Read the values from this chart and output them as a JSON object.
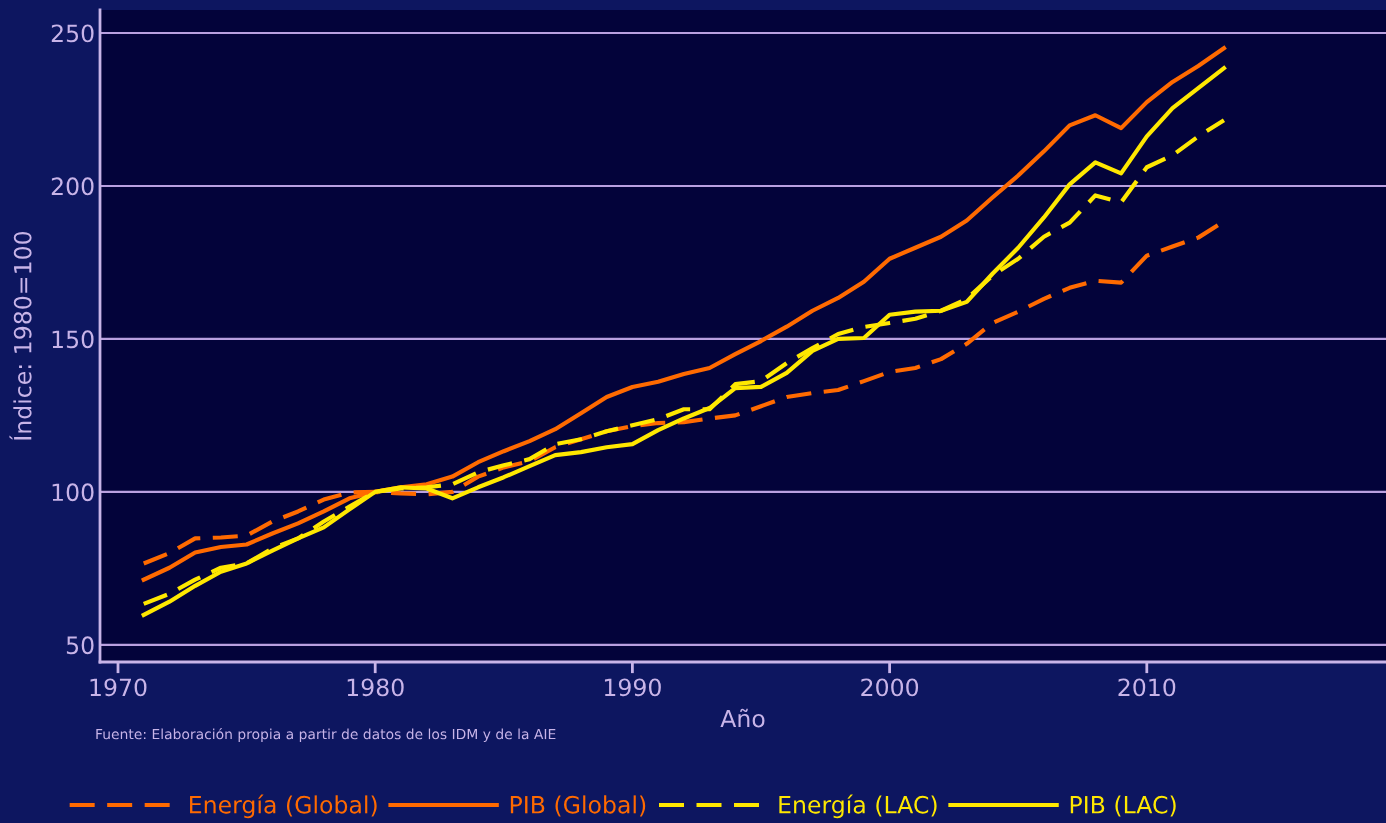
{
  "chart_data": {
    "type": "line",
    "xlabel": "Año",
    "ylabel": "Índice: 1980=100",
    "annotations": [
      "Fuente: Elaboración propia a partir de datos de los IDM y de la AIE"
    ],
    "x": [
      1971,
      1972,
      1973,
      1974,
      1975,
      1976,
      1977,
      1978,
      1979,
      1980,
      1981,
      1982,
      1983,
      1984,
      1985,
      1986,
      1987,
      1988,
      1989,
      1990,
      1991,
      1992,
      1993,
      1994,
      1995,
      1996,
      1997,
      1998,
      1999,
      2000,
      2001,
      2002,
      2003,
      2004,
      2005,
      2006,
      2007,
      2008,
      2009,
      2010,
      2011,
      2012,
      2013
    ],
    "series": [
      {
        "name": "Energía (Global)",
        "color": "#ff6a00",
        "line_style": "dashed",
        "values": [
          76.6,
          80,
          84.8,
          85.1,
          85.7,
          90.3,
          93.6,
          97.5,
          99.8,
          100,
          99.5,
          99.2,
          100,
          105,
          108,
          110,
          114.6,
          117.2,
          119.8,
          121.5,
          122.5,
          122.8,
          124,
          125,
          128,
          131,
          132.3,
          133.3,
          136.2,
          139.2,
          140.5,
          143.4,
          148.4,
          155.2,
          158.9,
          163.1,
          166.7,
          169,
          168.4,
          177.2,
          180.2,
          183.1,
          188.4
        ]
      },
      {
        "name": "PIB (Global)",
        "color": "#ff6a00",
        "line_style": "solid",
        "values": [
          71.3,
          75.2,
          80.2,
          82,
          82.8,
          86.4,
          89.7,
          93.6,
          97.9,
          100,
          101.5,
          102.5,
          105,
          109.7,
          113.3,
          116.6,
          120.5,
          125.7,
          131,
          134.3,
          136,
          138.5,
          140.5,
          145,
          149.3,
          154,
          159.2,
          163.4,
          168.7,
          176.2,
          179.8,
          183.4,
          188.7,
          196.2,
          203.4,
          211.3,
          219.8,
          223.1,
          218.9,
          227.4,
          234,
          239.2,
          245
        ]
      },
      {
        "name": "Energía (LAC)",
        "color": "#ffe800",
        "line_style": "dashed",
        "values": [
          63.4,
          66.7,
          71.3,
          75.2,
          76.6,
          81.5,
          84.8,
          90.3,
          95.2,
          100,
          101.1,
          101.5,
          102.5,
          106.4,
          108.7,
          110.7,
          115.6,
          117.2,
          119.8,
          121.8,
          123.8,
          127,
          127,
          135.2,
          136.2,
          142.1,
          147,
          151.6,
          153.9,
          155.2,
          156.6,
          159.2,
          163.1,
          170.7,
          176.2,
          183.4,
          188,
          196.9,
          194.6,
          206.1,
          210,
          216.2,
          221.5
        ]
      },
      {
        "name": "PIB (LAC)",
        "color": "#ffe800",
        "line_style": "solid",
        "values": [
          59.8,
          64.1,
          69.3,
          73.9,
          76.6,
          80.8,
          84.8,
          88.4,
          94.3,
          100,
          101.5,
          101.1,
          97.9,
          101.5,
          104.8,
          108.4,
          112,
          113,
          114.6,
          115.6,
          120.2,
          124,
          127.4,
          133.9,
          134.3,
          138.9,
          146.1,
          150,
          150.3,
          157.9,
          158.9,
          159.2,
          162.1,
          171.3,
          179.8,
          189.7,
          200.5,
          207.7,
          204.1,
          216.2,
          225.4,
          232,
          238.5
        ]
      }
    ],
    "xlim": [
      1969.3,
      2019.3
    ],
    "ylim": [
      44.4,
      257.5
    ],
    "xticks": [
      1970,
      1980,
      1990,
      2000,
      2010
    ],
    "yticks": [
      50,
      100,
      150,
      200,
      250
    ],
    "grid": "y",
    "legend": "bottom",
    "marker": "none"
  }
}
